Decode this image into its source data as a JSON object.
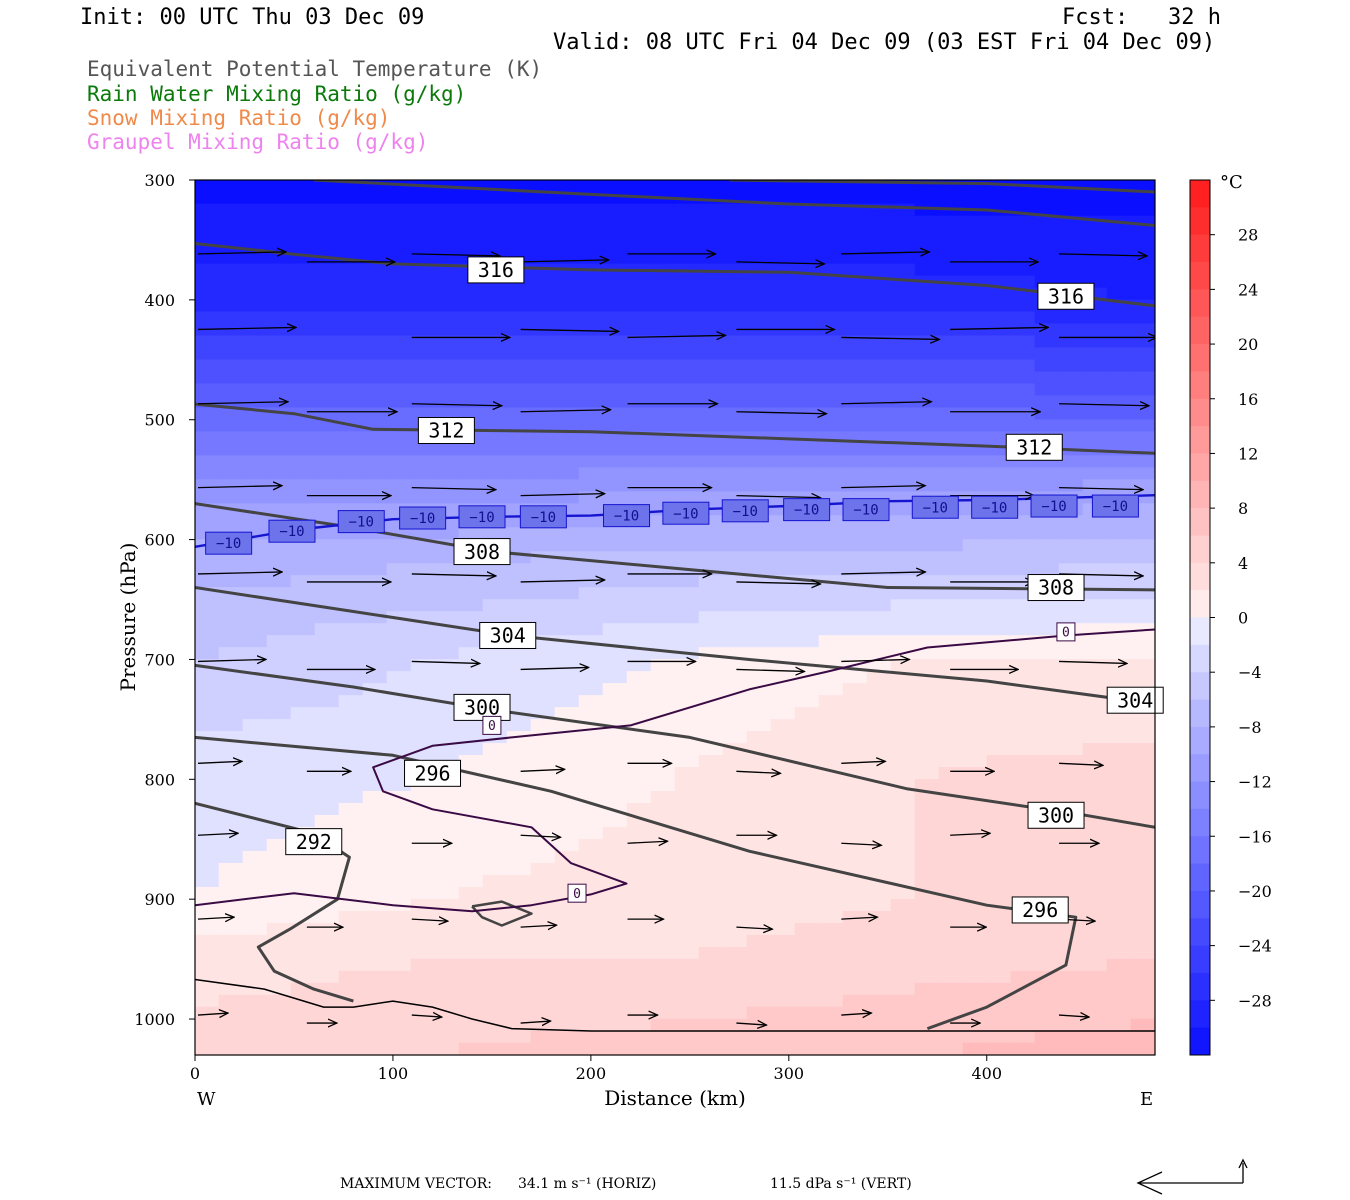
{
  "header": {
    "init": "Init: 00 UTC Thu 03 Dec 09",
    "fcst": "Fcst:   32 h",
    "valid": "Valid: 08 UTC Fri 04 Dec 09 (03 EST Fri 04 Dec 09)"
  },
  "legend": [
    {
      "label": "Equivalent Potential Temperature (K)",
      "color": "#555555"
    },
    {
      "label": "Rain Water Mixing Ratio (g/kg)",
      "color": "#0b7a0b"
    },
    {
      "label": "Snow Mixing Ratio (g/kg)",
      "color": "#f08a4b"
    },
    {
      "label": "Graupel Mixing Ratio (g/kg)",
      "color": "#ee82ee"
    }
  ],
  "footer": {
    "max_label": "MAXIMUM VECTOR:",
    "horiz": "34.1 m s⁻¹ (HORIZ)",
    "vert": "11.5 dPa s⁻¹ (VERT)"
  },
  "chart_data": {
    "type": "contour-cross-section",
    "xlabel": "Distance (km)",
    "ylabel": "Pressure (hPa)",
    "xlim": [
      0,
      485
    ],
    "ylim": [
      1030,
      300
    ],
    "x_ticks": [
      0,
      100,
      200,
      300,
      400
    ],
    "y_ticks": [
      300,
      400,
      500,
      600,
      700,
      800,
      900,
      1000
    ],
    "x_end_labels": {
      "left": "W",
      "right": "E"
    },
    "colorbar": {
      "unit": "°C",
      "tick_labels": [
        "28",
        "24",
        "20",
        "16",
        "12",
        "8",
        "4",
        "0",
        "-4",
        "-8",
        "-12",
        "-16",
        "-20",
        "-24",
        "-28"
      ],
      "levels": [
        32,
        30,
        28,
        26,
        24,
        22,
        20,
        18,
        16,
        14,
        12,
        10,
        8,
        6,
        4,
        2,
        0,
        -2,
        -4,
        -6,
        -8,
        -10,
        -12,
        -14,
        -16,
        -18,
        -20,
        -22,
        -24,
        -26,
        -28,
        -30,
        -32
      ],
      "warm_color": "#ff1a1a",
      "cold_color": "#0a10ff"
    },
    "temperature_field": {
      "columns_x": [
        0,
        120,
        240,
        360,
        485
      ],
      "rows": [
        {
          "p": 300,
          "t": [
            -32,
            -32,
            -32,
            -32,
            -32
          ]
        },
        {
          "p": 400,
          "t": [
            -28,
            -28,
            -28,
            -28,
            -29
          ]
        },
        {
          "p": 500,
          "t": [
            -18,
            -18,
            -18,
            -18,
            -19
          ]
        },
        {
          "p": 560,
          "t": [
            -12,
            -12,
            -11,
            -11,
            -10
          ]
        },
        {
          "p": 620,
          "t": [
            -8,
            -7,
            -6,
            -6,
            -5
          ]
        },
        {
          "p": 700,
          "t": [
            -5,
            -3,
            -1,
            1,
            1
          ]
        },
        {
          "p": 800,
          "t": [
            -2,
            -1,
            1,
            3,
            4
          ]
        },
        {
          "p": 900,
          "t": [
            -1,
            1,
            2,
            3,
            4
          ]
        },
        {
          "p": 950,
          "t": [
            2,
            3,
            3,
            4,
            5
          ]
        },
        {
          "p": 1030,
          "t": [
            4,
            5,
            6,
            7,
            8
          ]
        }
      ]
    },
    "theta_e_contours": [
      {
        "value": "316",
        "pts": [
          [
            0,
            353
          ],
          [
            50,
            362
          ],
          [
            100,
            370
          ],
          [
            200,
            375
          ],
          [
            300,
            377
          ],
          [
            400,
            388
          ],
          [
            485,
            405
          ]
        ],
        "labels": [
          [
            152,
            375
          ],
          [
            440,
            397
          ]
        ]
      },
      {
        "value": "",
        "pts": [
          [
            60,
            300
          ],
          [
            200,
            312
          ],
          [
            300,
            320
          ],
          [
            400,
            325
          ],
          [
            485,
            338
          ]
        ],
        "labels": []
      },
      {
        "value": "",
        "pts": [
          [
            270,
            300
          ],
          [
            400,
            303
          ],
          [
            485,
            310
          ]
        ],
        "labels": []
      },
      {
        "value": "312",
        "pts": [
          [
            0,
            487
          ],
          [
            50,
            495
          ],
          [
            90,
            508
          ],
          [
            200,
            510
          ],
          [
            300,
            516
          ],
          [
            400,
            522
          ],
          [
            485,
            528
          ]
        ],
        "labels": [
          [
            127,
            509
          ],
          [
            424,
            523
          ]
        ]
      },
      {
        "value": "308",
        "pts": [
          [
            0,
            570
          ],
          [
            80,
            590
          ],
          [
            150,
            610
          ],
          [
            250,
            625
          ],
          [
            350,
            640
          ],
          [
            485,
            642
          ]
        ],
        "labels": [
          [
            145,
            610
          ],
          [
            435,
            640
          ]
        ]
      },
      {
        "value": "304",
        "pts": [
          [
            0,
            640
          ],
          [
            80,
            660
          ],
          [
            160,
            680
          ],
          [
            280,
            700
          ],
          [
            400,
            718
          ],
          [
            485,
            737
          ]
        ],
        "labels": [
          [
            158,
            680
          ],
          [
            475,
            734
          ]
        ]
      },
      {
        "value": "300",
        "pts": [
          [
            0,
            705
          ],
          [
            80,
            723
          ],
          [
            150,
            742
          ],
          [
            250,
            765
          ],
          [
            360,
            808
          ],
          [
            450,
            830
          ],
          [
            485,
            840
          ]
        ],
        "labels": [
          [
            145,
            740
          ],
          [
            435,
            830
          ]
        ]
      },
      {
        "value": "296",
        "pts": [
          [
            0,
            765
          ],
          [
            100,
            780
          ],
          [
            180,
            810
          ],
          [
            280,
            860
          ],
          [
            400,
            905
          ],
          [
            445,
            915
          ],
          [
            440,
            955
          ],
          [
            400,
            990
          ],
          [
            370,
            1008
          ]
        ],
        "labels": [
          [
            120,
            795
          ],
          [
            427,
            909
          ]
        ]
      },
      {
        "value": "292",
        "pts": [
          [
            0,
            820
          ],
          [
            60,
            845
          ],
          [
            78,
            865
          ],
          [
            72,
            900
          ],
          [
            48,
            925
          ],
          [
            32,
            940
          ],
          [
            40,
            960
          ],
          [
            60,
            975
          ],
          [
            80,
            985
          ]
        ],
        "labels": [
          [
            60,
            852
          ]
        ]
      }
    ],
    "temp_contours": [
      {
        "value": "0",
        "pts": [
          [
            0,
            905
          ],
          [
            50,
            895
          ],
          [
            100,
            905
          ],
          [
            140,
            910
          ],
          [
            170,
            905
          ],
          [
            200,
            896
          ],
          [
            218,
            887
          ],
          [
            190,
            870
          ],
          [
            170,
            840
          ],
          [
            120,
            825
          ],
          [
            95,
            810
          ],
          [
            90,
            790
          ],
          [
            120,
            772
          ],
          [
            160,
            765
          ],
          [
            220,
            755
          ],
          [
            280,
            725
          ],
          [
            320,
            710
          ],
          [
            370,
            690
          ],
          [
            440,
            680
          ],
          [
            485,
            675
          ]
        ],
        "labels": [
          [
            150,
            755
          ],
          [
            193,
            895
          ],
          [
            440,
            677
          ]
        ],
        "color": "#3a0a45"
      },
      {
        "value": "-10",
        "pts": [
          [
            0,
            606
          ],
          [
            50,
            592
          ],
          [
            100,
            583
          ],
          [
            150,
            581
          ],
          [
            200,
            580
          ],
          [
            250,
            575
          ],
          [
            300,
            572
          ],
          [
            350,
            568
          ],
          [
            400,
            567
          ],
          [
            485,
            563
          ]
        ],
        "labels": [
          [
            17,
            603
          ],
          [
            49,
            593
          ],
          [
            84,
            585
          ],
          [
            115,
            582
          ],
          [
            145,
            581
          ],
          [
            176,
            581
          ],
          [
            218,
            580
          ],
          [
            248,
            578
          ],
          [
            278,
            576
          ],
          [
            309,
            575
          ],
          [
            339,
            575
          ],
          [
            374,
            573
          ],
          [
            404,
            573
          ],
          [
            434,
            572
          ],
          [
            465,
            572
          ]
        ],
        "color": "#1515d0"
      }
    ],
    "small_loop": [
      [
        140,
        906
      ],
      [
        155,
        902
      ],
      [
        170,
        912
      ],
      [
        155,
        922
      ],
      [
        145,
        915
      ]
    ],
    "surface_boundary": [
      [
        0,
        967
      ],
      [
        35,
        975
      ],
      [
        65,
        990
      ],
      [
        80,
        990
      ],
      [
        100,
        985
      ],
      [
        120,
        990
      ],
      [
        140,
        1000
      ],
      [
        160,
        1008
      ],
      [
        200,
        1010
      ],
      [
        300,
        1010
      ],
      [
        400,
        1010
      ],
      [
        485,
        1010
      ]
    ],
    "wind_vectors": {
      "rows": [
        {
          "p": 365,
          "x": [
            0,
            55,
            108,
            163,
            217,
            272,
            325,
            380,
            435
          ],
          "u": 44
        },
        {
          "p": 428,
          "x": [
            0,
            108,
            163,
            217,
            272,
            325,
            380,
            435
          ],
          "u": 49
        },
        {
          "p": 490,
          "x": [
            0,
            55,
            108,
            163,
            217,
            272,
            325,
            380,
            435
          ],
          "u": 45
        },
        {
          "p": 560,
          "x": [
            0,
            55,
            108,
            163,
            217,
            272,
            325,
            380,
            435
          ],
          "u": 42
        },
        {
          "p": 632,
          "x": [
            0,
            55,
            108,
            163,
            217,
            272,
            325,
            380,
            435
          ],
          "u": 42
        },
        {
          "p": 705,
          "x": [
            0,
            55,
            108,
            163,
            217,
            272,
            325,
            380,
            435
          ],
          "u": 34
        },
        {
          "p": 790,
          "x": [
            0,
            55,
            108,
            163,
            217,
            272,
            325,
            380,
            435
          ],
          "u": 22
        },
        {
          "p": 850,
          "x": [
            0,
            108,
            163,
            217,
            272,
            325,
            380,
            435
          ],
          "u": 20
        },
        {
          "p": 920,
          "x": [
            0,
            55,
            108,
            163,
            217,
            272,
            325,
            380,
            435
          ],
          "u": 18
        },
        {
          "p": 1000,
          "x": [
            0,
            55,
            108,
            163,
            217,
            272,
            325,
            380,
            435
          ],
          "u": 15
        }
      ]
    }
  }
}
